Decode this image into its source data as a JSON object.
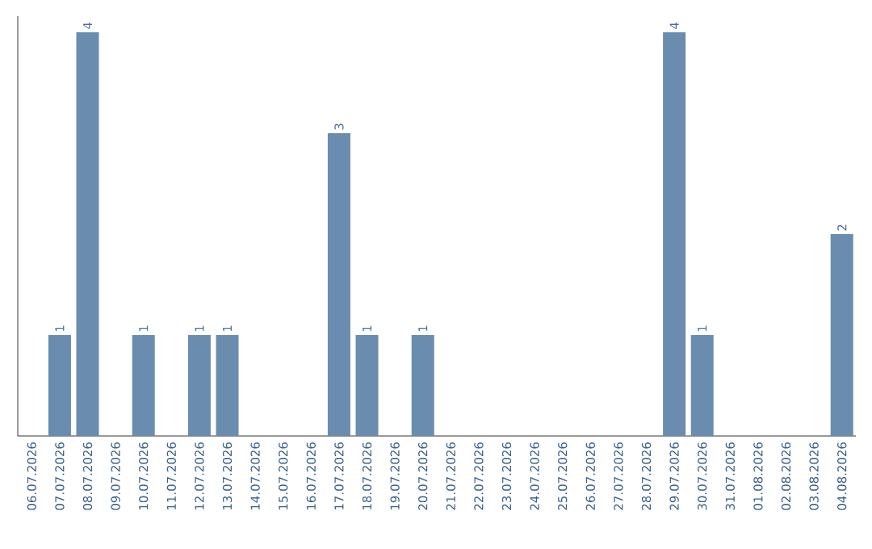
{
  "chart_data": {
    "type": "bar",
    "categories": [
      "06.07.2026",
      "07.07.2026",
      "08.07.2026",
      "09.07.2026",
      "10.07.2026",
      "11.07.2026",
      "12.07.2026",
      "13.07.2026",
      "14.07.2026",
      "15.07.2026",
      "16.07.2026",
      "17.07.2026",
      "18.07.2026",
      "19.07.2026",
      "20.07.2026",
      "21.07.2026",
      "22.07.2026",
      "23.07.2026",
      "24.07.2026",
      "25.07.2026",
      "26.07.2026",
      "27.07.2026",
      "28.07.2026",
      "29.07.2026",
      "30.07.2026",
      "31.07.2026",
      "01.08.2026",
      "02.08.2026",
      "03.08.2026",
      "04.08.2026"
    ],
    "values": [
      0,
      1,
      4,
      0,
      1,
      0,
      1,
      1,
      0,
      0,
      0,
      3,
      1,
      0,
      1,
      0,
      0,
      0,
      0,
      0,
      0,
      0,
      0,
      4,
      1,
      0,
      0,
      0,
      0,
      2
    ],
    "value_labels": [
      null,
      "1",
      "4",
      null,
      "1",
      null,
      "1",
      "1",
      null,
      null,
      null,
      "3",
      "1",
      null,
      "1",
      null,
      null,
      null,
      null,
      null,
      null,
      null,
      null,
      "4",
      "1",
      null,
      null,
      null,
      null,
      "2"
    ],
    "color": "#6a8caf",
    "ylim": [
      0,
      4.16
    ],
    "tick_labels": "x"
  }
}
